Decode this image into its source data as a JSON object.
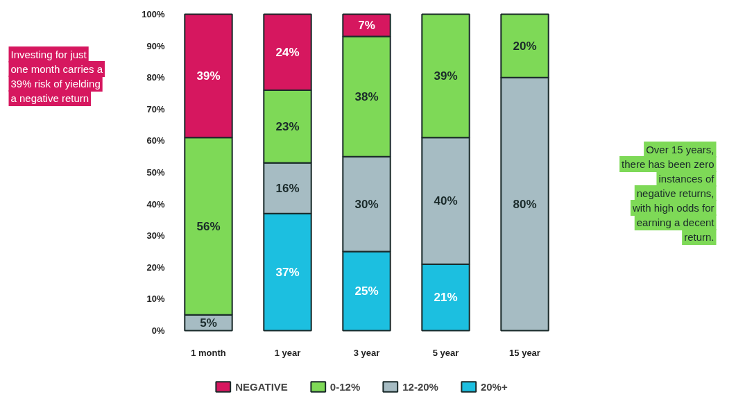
{
  "chart_data": {
    "type": "bar",
    "stacked": true,
    "categories": [
      "1 month",
      "1 year",
      "3 year",
      "5 year",
      "15 year"
    ],
    "series": [
      {
        "name": "20%+",
        "color": "#1cbfe0",
        "values": [
          null,
          37,
          25,
          21,
          null
        ],
        "value_labels": [
          null,
          "37%",
          "25%",
          "21%",
          null
        ]
      },
      {
        "name": "12-20%",
        "color": "#a6bcc3",
        "values": [
          5,
          16,
          30,
          40,
          80
        ],
        "value_labels": [
          "5%",
          "16%",
          "30%",
          "40%",
          "80%"
        ]
      },
      {
        "name": "0-12%",
        "color": "#7ed957",
        "values": [
          56,
          23,
          38,
          39,
          20
        ],
        "value_labels": [
          "56%",
          "23%",
          "38%",
          "39%",
          "20%"
        ]
      },
      {
        "name": "NEGATIVE",
        "color": "#d6175f",
        "values": [
          39,
          24,
          7,
          null,
          null
        ],
        "value_labels": [
          "39%",
          "24%",
          "7%",
          null,
          null
        ]
      }
    ],
    "ylim": [
      0,
      100
    ],
    "yticks": [
      {
        "value": 0,
        "label": "0%"
      },
      {
        "value": 10,
        "label": "10%"
      },
      {
        "value": 20,
        "label": "20%"
      },
      {
        "value": 30,
        "label": "30%"
      },
      {
        "value": 40,
        "label": "40%"
      },
      {
        "value": 50,
        "label": "50%"
      },
      {
        "value": 60,
        "label": "60%"
      },
      {
        "value": 70,
        "label": "70%"
      },
      {
        "value": 80,
        "label": "80%"
      },
      {
        "value": 90,
        "label": "90%"
      },
      {
        "value": 100,
        "label": "100%"
      }
    ],
    "grid": false,
    "legend": "bottom",
    "annotations": [
      "Investing for just one month carries a 39% risk of yielding a negative return",
      "Over 15 years, there has been zero instances of negative returns, with high odds for earning a decent return."
    ]
  }
}
